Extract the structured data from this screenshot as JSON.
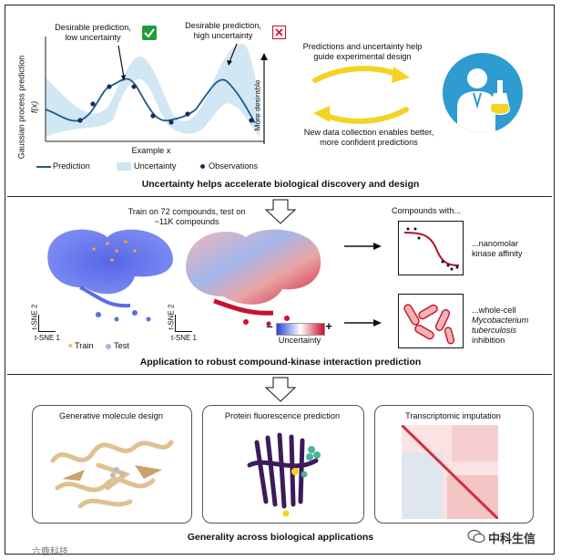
{
  "panel1": {
    "annot_low": "Desirable prediction, low uncertainty",
    "annot_high": "Desirable prediction, high uncertainty",
    "yaxis_label_1": "Gaussian process prediction",
    "yaxis_label_2": "f(x)",
    "more_desirable": "More desirable",
    "xaxis_label": "Example x",
    "legend_prediction": "Prediction",
    "legend_uncertainty": "Uncertainty",
    "legend_observations": "Observations",
    "arrow_top_text": "Predictions and uncertainty help guide experimental design",
    "arrow_bottom_text": "New data collection enables better, more confident predictions",
    "title": "Uncertainty helps accelerate biological discovery and design"
  },
  "panel2": {
    "train_test_text": "Train on 72 compounds, test on ~11K compounds",
    "tsne2": "t-SNE 2",
    "tsne1": "t-SNE 1",
    "legend_train": "Train",
    "legend_test": "Test",
    "uncertainty_label": "Uncertainty",
    "minus": "–",
    "plus": "+",
    "compounds_with": "Compounds with...",
    "nanomolar": "...nanomolar kinase affinity",
    "whole_cell": "...whole-cell",
    "mycobacterium": "Mycobacterium tuberculosis",
    "inhibition": "inhibition",
    "title": "Application to robust compound-kinase interaction prediction"
  },
  "panel3": {
    "card1": "Generative molecule design",
    "card2": "Protein fluorescence prediction",
    "card3": "Transcriptomic imputation",
    "title": "Generality across biological applications"
  },
  "watermark_left": "六鹿科技",
  "watermark_right": "中科生信",
  "colors": {
    "curve": "#1f5b8a",
    "band": "#cfe6f2",
    "arrow": "#f5d223",
    "blue": "#3a58d8",
    "red": "#c8102e",
    "check": "#1f9d3a"
  }
}
